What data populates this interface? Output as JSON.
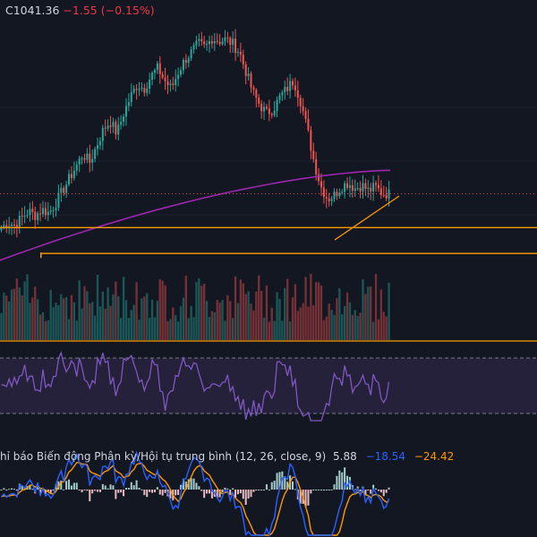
{
  "header": {
    "close_label": "C",
    "close": "1041.36",
    "change": "−1.55",
    "change_pct": "(−0.15%)"
  },
  "macd_panel": {
    "title": "hỉ báo Biến động Phân kỳ/Hội tụ trung bình (12, 26, close, 9)",
    "histogram_value": "5.88",
    "macd_value": "−18.54",
    "signal_value": "−24.42"
  },
  "colors": {
    "background": "#131722",
    "up": "#26a69a",
    "down": "#ef5350",
    "ma_line": "#9c27b0",
    "support_line": "#ff9800",
    "rsi_line": "#7e57c2",
    "rsi_band": "#2a2340",
    "macd_line": "#2962ff",
    "signal_line": "#ff9800",
    "last_price_line": "#ef5350"
  },
  "chart_data": {
    "type": "candlestick",
    "price_path": [
      1000,
      1006,
      1003,
      1012,
      1020,
      1015,
      1022,
      1018,
      1030,
      1045,
      1060,
      1075,
      1090,
      1080,
      1100,
      1120,
      1130,
      1115,
      1140,
      1160,
      1175,
      1170,
      1185,
      1195,
      1180,
      1170,
      1190,
      1205,
      1215,
      1225,
      1220,
      1232,
      1228,
      1230,
      1225,
      1215,
      1190,
      1165,
      1150,
      1140,
      1145,
      1160,
      1170,
      1180,
      1155,
      1120,
      1080,
      1050,
      1035,
      1040,
      1050,
      1055,
      1048,
      1052,
      1045,
      1050,
      1042,
      1041.36
    ],
    "horizontal_levels": [
      1000,
      987,
      963
    ],
    "last_price": 1041.36,
    "moving_average": {
      "type": "line",
      "start": 960,
      "end": 1070
    },
    "rsi": {
      "upper_band": 70,
      "lower_band": 30
    },
    "macd": {
      "histogram": 5.88,
      "macd": -18.54,
      "signal": -24.42
    }
  }
}
